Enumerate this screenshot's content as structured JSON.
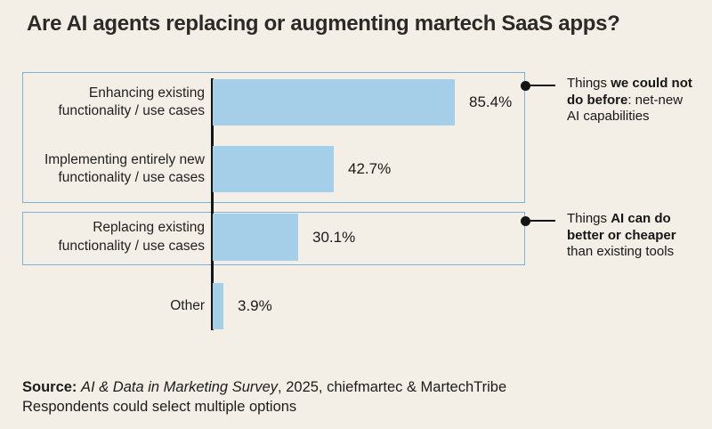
{
  "title": "Are AI agents replacing or augmenting martech SaaS apps?",
  "chart_data": {
    "type": "bar",
    "orientation": "horizontal",
    "title": "Are AI agents replacing or augmenting martech SaaS apps?",
    "categories": [
      "Enhancing existing\nfunctionality / use cases",
      "Implementing entirely new\nfunctionality / use cases",
      "Replacing existing\nfunctionality / use cases",
      "Other"
    ],
    "values": [
      85.4,
      42.7,
      30.1,
      3.9
    ],
    "value_labels": [
      "85.4%",
      "42.7%",
      "30.1%",
      "3.9%"
    ],
    "unit": "%",
    "xlim": [
      0,
      100
    ],
    "grid": false,
    "legend": "none",
    "bar_color": "#A5CFE9",
    "groups": [
      {
        "label": "Things we could not do before: net-new AI capabilities",
        "category_indexes": [
          0,
          1
        ]
      },
      {
        "label": "Things AI can do better or cheaper than existing tools",
        "category_indexes": [
          2
        ]
      }
    ]
  },
  "annotations": {
    "group1_lines": [
      [
        {
          "t": "Things ",
          "b": false
        },
        {
          "t": "we could not",
          "b": true
        }
      ],
      [
        {
          "t": "do before",
          "b": true
        },
        {
          "t": ": net-new",
          "b": false
        }
      ],
      [
        {
          "t": "AI capabilities",
          "b": false
        }
      ]
    ],
    "group2_lines": [
      [
        {
          "t": "Things ",
          "b": false
        },
        {
          "t": "AI can do",
          "b": true
        }
      ],
      [
        {
          "t": "better or cheaper",
          "b": true
        }
      ],
      [
        {
          "t": "than existing tools",
          "b": false
        }
      ]
    ]
  },
  "source": {
    "line1": [
      {
        "t": "Source:",
        "b": true
      },
      {
        "t": " ",
        "b": false
      },
      {
        "t": "AI & Data in Marketing Survey",
        "i": true
      },
      {
        "t": ", 2025, chiefmartec & MartechTribe",
        "b": false
      }
    ],
    "line2": "Respondents could select multiple options"
  },
  "colors": {
    "background": "#F4EFE6",
    "bar": "#A5CFE9",
    "box_border": "#7FB0D6",
    "axis": "#141414",
    "text": "#1F1F1F",
    "title": "#2B2A28",
    "connector": "#141414"
  }
}
